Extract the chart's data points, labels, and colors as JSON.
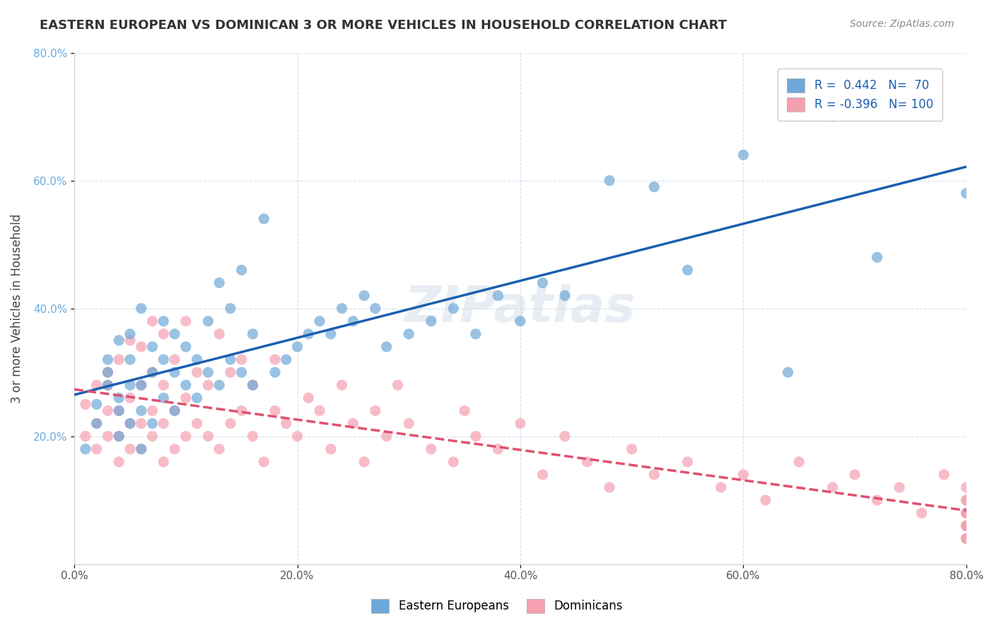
{
  "title": "EASTERN EUROPEAN VS DOMINICAN 3 OR MORE VEHICLES IN HOUSEHOLD CORRELATION CHART",
  "source": "Source: ZipAtlas.com",
  "xlabel": "",
  "ylabel": "3 or more Vehicles in Household",
  "xlim": [
    0.0,
    0.8
  ],
  "ylim": [
    0.0,
    0.8
  ],
  "xtick_labels": [
    "0.0%",
    "20.0%",
    "40.0%",
    "60.0%",
    "80.0%"
  ],
  "xtick_vals": [
    0.0,
    0.2,
    0.4,
    0.6,
    0.8
  ],
  "ytick_labels": [
    "20.0%",
    "40.0%",
    "60.0%",
    "80.0%"
  ],
  "ytick_vals": [
    0.2,
    0.4,
    0.6,
    0.8
  ],
  "legend_labels": [
    "Eastern Europeans",
    "Dominicans"
  ],
  "blue_R": 0.442,
  "blue_N": 70,
  "pink_R": -0.396,
  "pink_N": 100,
  "blue_color": "#6ea8d8",
  "pink_color": "#f4a0b0",
  "blue_line_color": "#1a5fb0",
  "pink_line_color": "#e05070",
  "watermark": "ZIPatlas",
  "blue_scatter_x": [
    0.01,
    0.02,
    0.02,
    0.03,
    0.03,
    0.03,
    0.04,
    0.04,
    0.04,
    0.04,
    0.05,
    0.05,
    0.05,
    0.05,
    0.06,
    0.06,
    0.06,
    0.06,
    0.07,
    0.07,
    0.07,
    0.08,
    0.08,
    0.08,
    0.09,
    0.09,
    0.09,
    0.1,
    0.1,
    0.11,
    0.11,
    0.12,
    0.12,
    0.13,
    0.13,
    0.14,
    0.14,
    0.15,
    0.15,
    0.16,
    0.16,
    0.17,
    0.18,
    0.19,
    0.2,
    0.21,
    0.22,
    0.23,
    0.24,
    0.25,
    0.26,
    0.27,
    0.28,
    0.3,
    0.32,
    0.34,
    0.36,
    0.38,
    0.4,
    0.42,
    0.44,
    0.48,
    0.52,
    0.55,
    0.6,
    0.64,
    0.68,
    0.72,
    0.76,
    0.8
  ],
  "blue_scatter_y": [
    0.18,
    0.22,
    0.25,
    0.28,
    0.3,
    0.32,
    0.2,
    0.24,
    0.26,
    0.35,
    0.22,
    0.28,
    0.32,
    0.36,
    0.18,
    0.24,
    0.28,
    0.4,
    0.22,
    0.3,
    0.34,
    0.26,
    0.32,
    0.38,
    0.24,
    0.3,
    0.36,
    0.28,
    0.34,
    0.26,
    0.32,
    0.3,
    0.38,
    0.28,
    0.44,
    0.32,
    0.4,
    0.3,
    0.46,
    0.28,
    0.36,
    0.54,
    0.3,
    0.32,
    0.34,
    0.36,
    0.38,
    0.36,
    0.4,
    0.38,
    0.42,
    0.4,
    0.34,
    0.36,
    0.38,
    0.4,
    0.36,
    0.42,
    0.38,
    0.44,
    0.42,
    0.6,
    0.59,
    0.46,
    0.64,
    0.3,
    0.7,
    0.48,
    0.72,
    0.58
  ],
  "pink_scatter_x": [
    0.01,
    0.01,
    0.02,
    0.02,
    0.02,
    0.03,
    0.03,
    0.03,
    0.03,
    0.04,
    0.04,
    0.04,
    0.04,
    0.05,
    0.05,
    0.05,
    0.05,
    0.06,
    0.06,
    0.06,
    0.06,
    0.07,
    0.07,
    0.07,
    0.07,
    0.08,
    0.08,
    0.08,
    0.08,
    0.09,
    0.09,
    0.09,
    0.1,
    0.1,
    0.1,
    0.11,
    0.11,
    0.12,
    0.12,
    0.13,
    0.13,
    0.14,
    0.14,
    0.15,
    0.15,
    0.16,
    0.16,
    0.17,
    0.18,
    0.18,
    0.19,
    0.2,
    0.21,
    0.22,
    0.23,
    0.24,
    0.25,
    0.26,
    0.27,
    0.28,
    0.29,
    0.3,
    0.32,
    0.34,
    0.35,
    0.36,
    0.38,
    0.4,
    0.42,
    0.44,
    0.46,
    0.48,
    0.5,
    0.52,
    0.55,
    0.58,
    0.6,
    0.62,
    0.65,
    0.68,
    0.7,
    0.72,
    0.74,
    0.76,
    0.78,
    0.8,
    0.8,
    0.8,
    0.8,
    0.8,
    0.8,
    0.8,
    0.8,
    0.8,
    0.8,
    0.8,
    0.8,
    0.8,
    0.8,
    0.8
  ],
  "pink_scatter_y": [
    0.2,
    0.25,
    0.18,
    0.22,
    0.28,
    0.2,
    0.24,
    0.28,
    0.3,
    0.16,
    0.2,
    0.24,
    0.32,
    0.18,
    0.22,
    0.26,
    0.35,
    0.18,
    0.22,
    0.28,
    0.34,
    0.2,
    0.24,
    0.3,
    0.38,
    0.16,
    0.22,
    0.28,
    0.36,
    0.18,
    0.24,
    0.32,
    0.2,
    0.26,
    0.38,
    0.22,
    0.3,
    0.2,
    0.28,
    0.36,
    0.18,
    0.22,
    0.3,
    0.24,
    0.32,
    0.2,
    0.28,
    0.16,
    0.24,
    0.32,
    0.22,
    0.2,
    0.26,
    0.24,
    0.18,
    0.28,
    0.22,
    0.16,
    0.24,
    0.2,
    0.28,
    0.22,
    0.18,
    0.16,
    0.24,
    0.2,
    0.18,
    0.22,
    0.14,
    0.2,
    0.16,
    0.12,
    0.18,
    0.14,
    0.16,
    0.12,
    0.14,
    0.1,
    0.16,
    0.12,
    0.14,
    0.1,
    0.12,
    0.08,
    0.14,
    0.1,
    0.12,
    0.08,
    0.1,
    0.06,
    0.08,
    0.06,
    0.04,
    0.08,
    0.06,
    0.04,
    0.06,
    0.04,
    0.08,
    0.06
  ]
}
